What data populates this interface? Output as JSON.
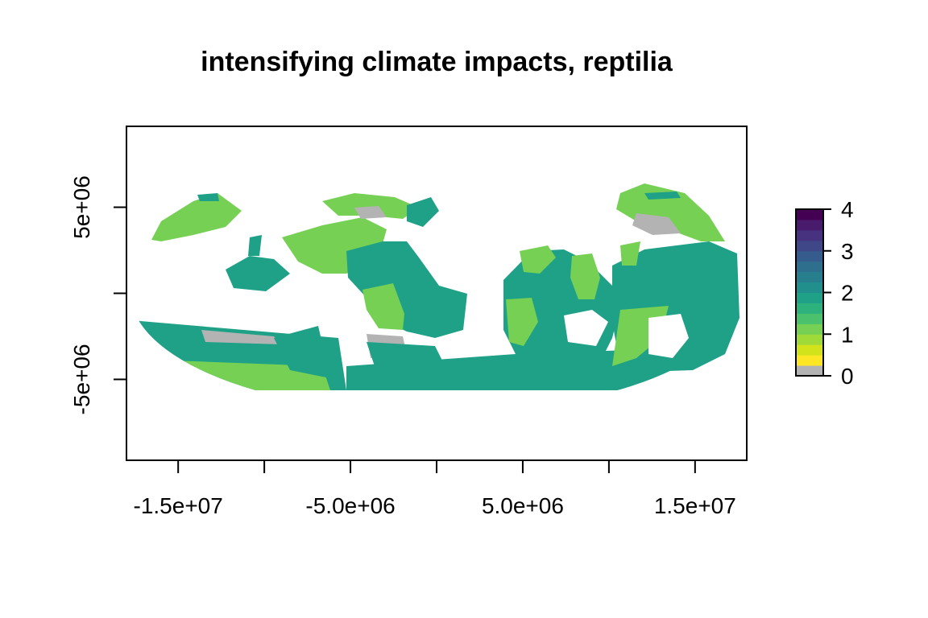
{
  "title": "intensifying climate impacts, reptilia",
  "map": {
    "x_ticks": [
      -15000000,
      -10000000,
      -5000000,
      0,
      5000000,
      10000000,
      15000000
    ],
    "x_tick_labels": [
      "-1.5e+07",
      "",
      "-5.0e+06",
      "",
      "5.0e+06",
      "",
      "1.5e+07"
    ],
    "y_ticks": [
      5000000,
      0,
      -5000000
    ],
    "y_tick_labels": [
      "5e+06",
      "",
      "-5e+06"
    ],
    "xlim": [
      -18000000,
      18000000
    ],
    "ylim": [
      -9700000,
      9700000
    ]
  },
  "legend": {
    "ticks": [
      0,
      1,
      2,
      3,
      4
    ],
    "tick_labels": [
      "0",
      "1",
      "2",
      "3",
      "4"
    ],
    "range": [
      0,
      4
    ],
    "colors": [
      "#b3b3b3",
      "#fde725",
      "#d2e21b",
      "#a0da39",
      "#75d054",
      "#4ac16d",
      "#2db27d",
      "#1fa187",
      "#21908d",
      "#277f8e",
      "#2e6f8e",
      "#365c8d",
      "#3f4788",
      "#46327e",
      "#481b6d",
      "#440154"
    ]
  },
  "palette": {
    "grey": "#b3b3b3",
    "light_green": "#75d054",
    "teal": "#1fa187",
    "dark_teal": "#21908d",
    "blue": "#2e6f8e",
    "axis": "#000000"
  }
}
